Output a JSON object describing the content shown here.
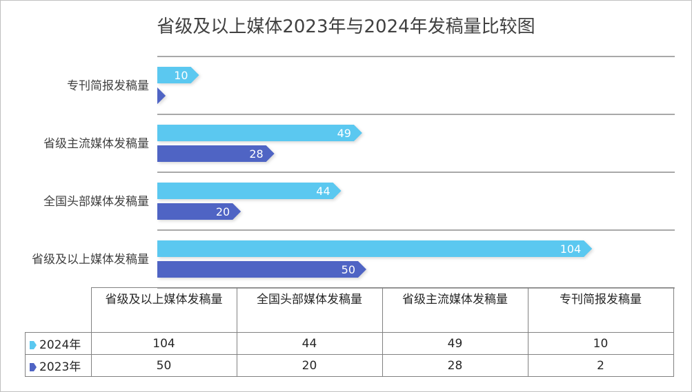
{
  "chart_data": {
    "type": "bar",
    "title": "省级及以上媒体2023年与2024年发稿量比较图",
    "categories": [
      "省级及以上媒体发稿量",
      "全国头部媒体发稿量",
      "省级主流媒体发稿量",
      "专刊简报发稿量"
    ],
    "series": [
      {
        "name": "2024年",
        "values": [
          104,
          44,
          49,
          10
        ],
        "color": "#5bc8f0"
      },
      {
        "name": "2023年",
        "values": [
          50,
          20,
          28,
          2
        ],
        "color": "#4f64c4"
      }
    ],
    "table_headers": [
      "省级及以上媒体发稿量",
      "全国头部媒体发稿量",
      "省级主流媒体发稿量",
      "专刊简报发稿量"
    ],
    "xlim": [
      0,
      120
    ],
    "orientation": "horizontal",
    "data_labels": true,
    "data_table": true
  }
}
